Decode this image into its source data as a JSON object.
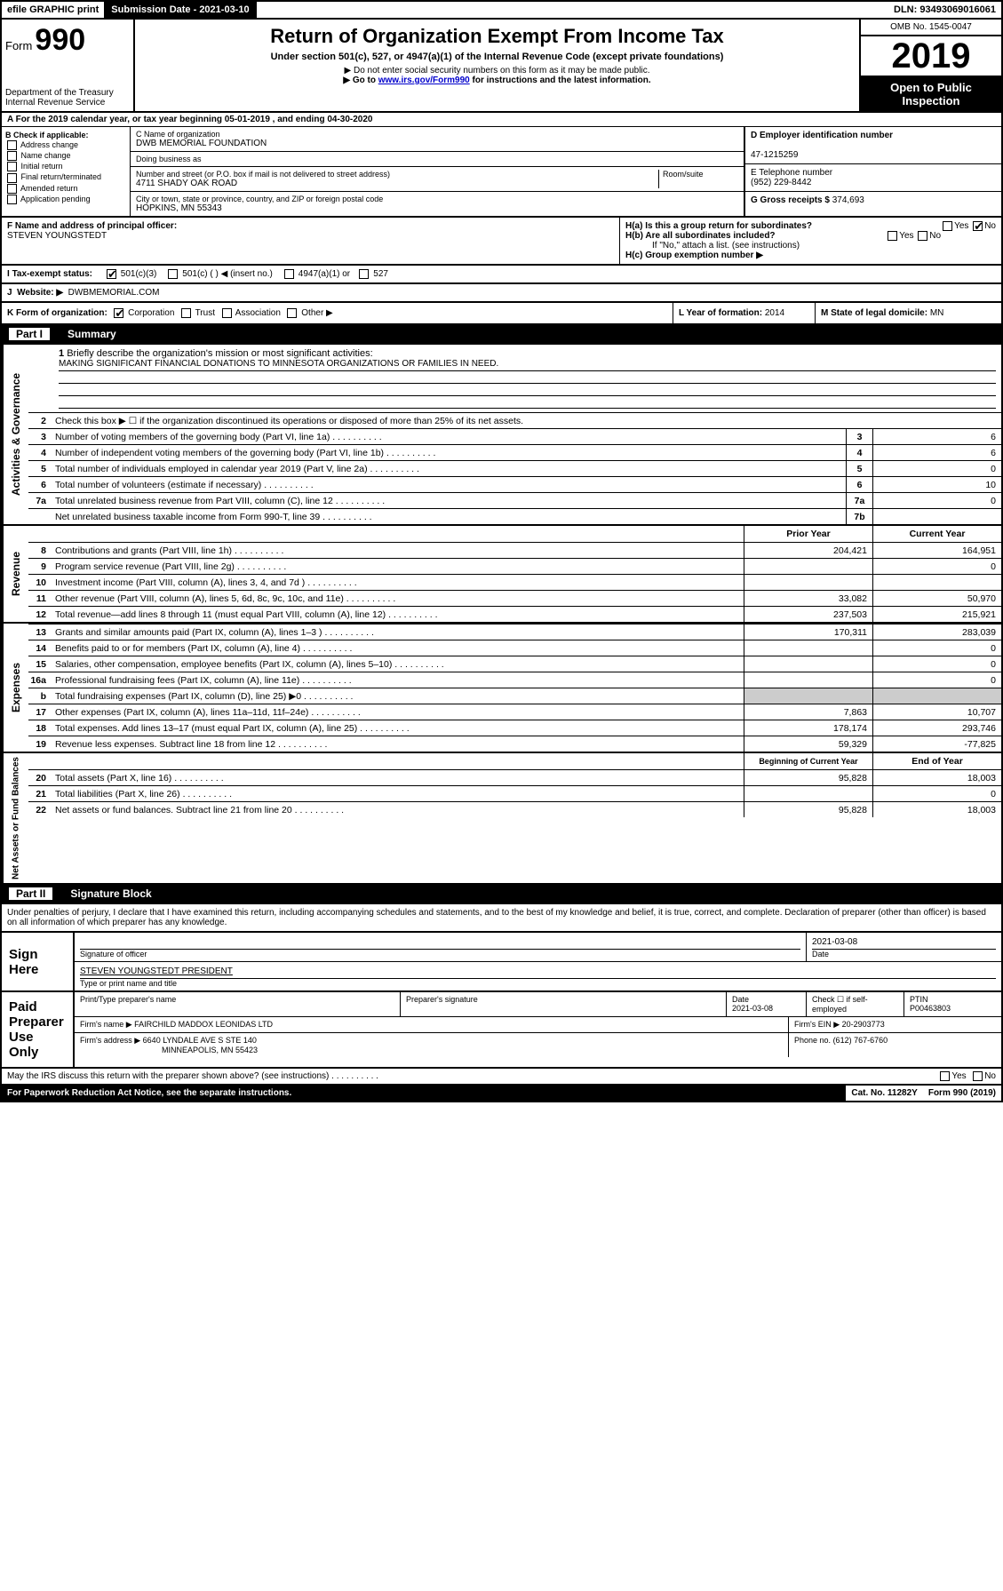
{
  "top": {
    "efile": "efile GRAPHIC print",
    "submission": "Submission Date - 2021-03-10",
    "dln": "DLN: 93493069016061"
  },
  "header": {
    "form_label": "Form",
    "form_num": "990",
    "dept": "Department of the Treasury\nInternal Revenue Service",
    "title": "Return of Organization Exempt From Income Tax",
    "subtitle": "Under section 501(c), 527, or 4947(a)(1) of the Internal Revenue Code (except private foundations)",
    "note1": "▶ Do not enter social security numbers on this form as it may be made public.",
    "note2_pre": "▶ Go to ",
    "note2_link": "www.irs.gov/Form990",
    "note2_post": " for instructions and the latest information.",
    "omb": "OMB No. 1545-0047",
    "year": "2019",
    "open": "Open to Public Inspection"
  },
  "period": "For the 2019 calendar year, or tax year beginning 05-01-2019   , and ending 04-30-2020",
  "boxB": {
    "label": "B Check if applicable:",
    "items": [
      "Address change",
      "Name change",
      "Initial return",
      "Final return/terminated",
      "Amended return",
      "Application pending"
    ]
  },
  "boxC": {
    "name_lbl": "C Name of organization",
    "name": "DWB MEMORIAL FOUNDATION",
    "dba_lbl": "Doing business as",
    "addr_lbl": "Number and street (or P.O. box if mail is not delivered to street address)",
    "room_lbl": "Room/suite",
    "addr": "4711 SHADY OAK ROAD",
    "city_lbl": "City or town, state or province, country, and ZIP or foreign postal code",
    "city": "HOPKINS, MN  55343"
  },
  "boxD": {
    "lbl": "D Employer identification number",
    "val": "47-1215259"
  },
  "boxE": {
    "lbl": "E Telephone number",
    "val": "(952) 229-8442"
  },
  "boxG": {
    "lbl": "G Gross receipts $",
    "val": "374,693"
  },
  "rowF": {
    "lbl": "F  Name and address of principal officer:",
    "val": "STEVEN YOUNGSTEDT"
  },
  "rowH": {
    "a": "H(a)  Is this a group return for subordinates?",
    "b": "H(b)  Are all subordinates included?",
    "b_note": "If \"No,\" attach a list. (see instructions)",
    "c": "H(c)  Group exemption number ▶",
    "yes": "Yes",
    "no": "No"
  },
  "rowI": {
    "lbl": "Tax-exempt status:",
    "opts": [
      "501(c)(3)",
      "501(c) (   ) ◀ (insert no.)",
      "4947(a)(1) or",
      "527"
    ]
  },
  "rowJ": {
    "lbl": "Website: ▶",
    "val": "DWBMEMORIAL.COM"
  },
  "rowK": {
    "lbl": "K Form of organization:",
    "opts": [
      "Corporation",
      "Trust",
      "Association",
      "Other ▶"
    ],
    "l_lbl": "L Year of formation:",
    "l_val": "2014",
    "m_lbl": "M State of legal domicile:",
    "m_val": "MN"
  },
  "parts": {
    "p1": "Part I",
    "p1_title": "Summary",
    "p2": "Part II",
    "p2_title": "Signature Block"
  },
  "side_labels": {
    "gov": "Activities & Governance",
    "rev": "Revenue",
    "exp": "Expenses",
    "net": "Net Assets or Fund Balances"
  },
  "q1": {
    "num": "1",
    "lbl": "Briefly describe the organization's mission or most significant activities:",
    "val": "MAKING SIGNIFICANT FINANCIAL DONATIONS TO MINNESOTA ORGANIZATIONS OR FAMILIES IN NEED."
  },
  "q2": {
    "num": "2",
    "lbl": "Check this box ▶ ☐  if the organization discontinued its operations or disposed of more than 25% of its net assets."
  },
  "lines_gov": [
    {
      "n": "3",
      "d": "Number of voting members of the governing body (Part VI, line 1a)",
      "b": "3",
      "v": "6"
    },
    {
      "n": "4",
      "d": "Number of independent voting members of the governing body (Part VI, line 1b)",
      "b": "4",
      "v": "6"
    },
    {
      "n": "5",
      "d": "Total number of individuals employed in calendar year 2019 (Part V, line 2a)",
      "b": "5",
      "v": "0"
    },
    {
      "n": "6",
      "d": "Total number of volunteers (estimate if necessary)",
      "b": "6",
      "v": "10"
    },
    {
      "n": "7a",
      "d": "Total unrelated business revenue from Part VIII, column (C), line 12",
      "b": "7a",
      "v": "0"
    },
    {
      "n": "",
      "d": "Net unrelated business taxable income from Form 990-T, line 39",
      "b": "7b",
      "v": ""
    }
  ],
  "col_hdr": {
    "py": "Prior Year",
    "cy": "Current Year",
    "by": "Beginning of Current Year",
    "ey": "End of Year"
  },
  "lines_rev": [
    {
      "n": "8",
      "d": "Contributions and grants (Part VIII, line 1h)",
      "p": "204,421",
      "c": "164,951"
    },
    {
      "n": "9",
      "d": "Program service revenue (Part VIII, line 2g)",
      "p": "",
      "c": "0"
    },
    {
      "n": "10",
      "d": "Investment income (Part VIII, column (A), lines 3, 4, and 7d )",
      "p": "",
      "c": ""
    },
    {
      "n": "11",
      "d": "Other revenue (Part VIII, column (A), lines 5, 6d, 8c, 9c, 10c, and 11e)",
      "p": "33,082",
      "c": "50,970"
    },
    {
      "n": "12",
      "d": "Total revenue—add lines 8 through 11 (must equal Part VIII, column (A), line 12)",
      "p": "237,503",
      "c": "215,921"
    }
  ],
  "lines_exp": [
    {
      "n": "13",
      "d": "Grants and similar amounts paid (Part IX, column (A), lines 1–3 )",
      "p": "170,311",
      "c": "283,039"
    },
    {
      "n": "14",
      "d": "Benefits paid to or for members (Part IX, column (A), line 4)",
      "p": "",
      "c": "0"
    },
    {
      "n": "15",
      "d": "Salaries, other compensation, employee benefits (Part IX, column (A), lines 5–10)",
      "p": "",
      "c": "0"
    },
    {
      "n": "16a",
      "d": "Professional fundraising fees (Part IX, column (A), line 11e)",
      "p": "",
      "c": "0"
    },
    {
      "n": "b",
      "d": "Total fundraising expenses (Part IX, column (D), line 25) ▶0",
      "p": "SHADE",
      "c": "SHADE"
    },
    {
      "n": "17",
      "d": "Other expenses (Part IX, column (A), lines 11a–11d, 11f–24e)",
      "p": "7,863",
      "c": "10,707"
    },
    {
      "n": "18",
      "d": "Total expenses. Add lines 13–17 (must equal Part IX, column (A), line 25)",
      "p": "178,174",
      "c": "293,746"
    },
    {
      "n": "19",
      "d": "Revenue less expenses. Subtract line 18 from line 12",
      "p": "59,329",
      "c": "-77,825"
    }
  ],
  "lines_net": [
    {
      "n": "20",
      "d": "Total assets (Part X, line 16)",
      "p": "95,828",
      "c": "18,003"
    },
    {
      "n": "21",
      "d": "Total liabilities (Part X, line 26)",
      "p": "",
      "c": "0"
    },
    {
      "n": "22",
      "d": "Net assets or fund balances. Subtract line 21 from line 20",
      "p": "95,828",
      "c": "18,003"
    }
  ],
  "sig": {
    "perjury": "Under penalties of perjury, I declare that I have examined this return, including accompanying schedules and statements, and to the best of my knowledge and belief, it is true, correct, and complete. Declaration of preparer (other than officer) is based on all information of which preparer has any knowledge.",
    "sign_here": "Sign Here",
    "sig_officer": "Signature of officer",
    "date_lbl": "Date",
    "date": "2021-03-08",
    "officer_name": "STEVEN YOUNGSTEDT PRESIDENT",
    "type_lbl": "Type or print name and title",
    "paid": "Paid Preparer Use Only",
    "prep_name_lbl": "Print/Type preparer's name",
    "prep_sig_lbl": "Preparer's signature",
    "prep_date_lbl": "Date",
    "prep_date": "2021-03-08",
    "check_lbl": "Check ☐ if self-employed",
    "ptin_lbl": "PTIN",
    "ptin": "P00463803",
    "firm_name_lbl": "Firm's name   ▶",
    "firm_name": "FAIRCHILD MADDOX LEONIDAS LTD",
    "firm_ein_lbl": "Firm's EIN ▶",
    "firm_ein": "20-2903773",
    "firm_addr_lbl": "Firm's address ▶",
    "firm_addr": "6640 LYNDALE AVE S STE 140",
    "firm_city": "MINNEAPOLIS, MN  55423",
    "phone_lbl": "Phone no.",
    "phone": "(612) 767-6760"
  },
  "footer": {
    "discuss": "May the IRS discuss this return with the preparer shown above? (see instructions)",
    "yes": "Yes",
    "no": "No",
    "paperwork": "For Paperwork Reduction Act Notice, see the separate instructions.",
    "cat": "Cat. No. 11282Y",
    "form": "Form 990 (2019)"
  },
  "colors": {
    "black": "#000000",
    "white": "#ffffff",
    "shade": "#cccccc",
    "link": "#0000cc"
  }
}
